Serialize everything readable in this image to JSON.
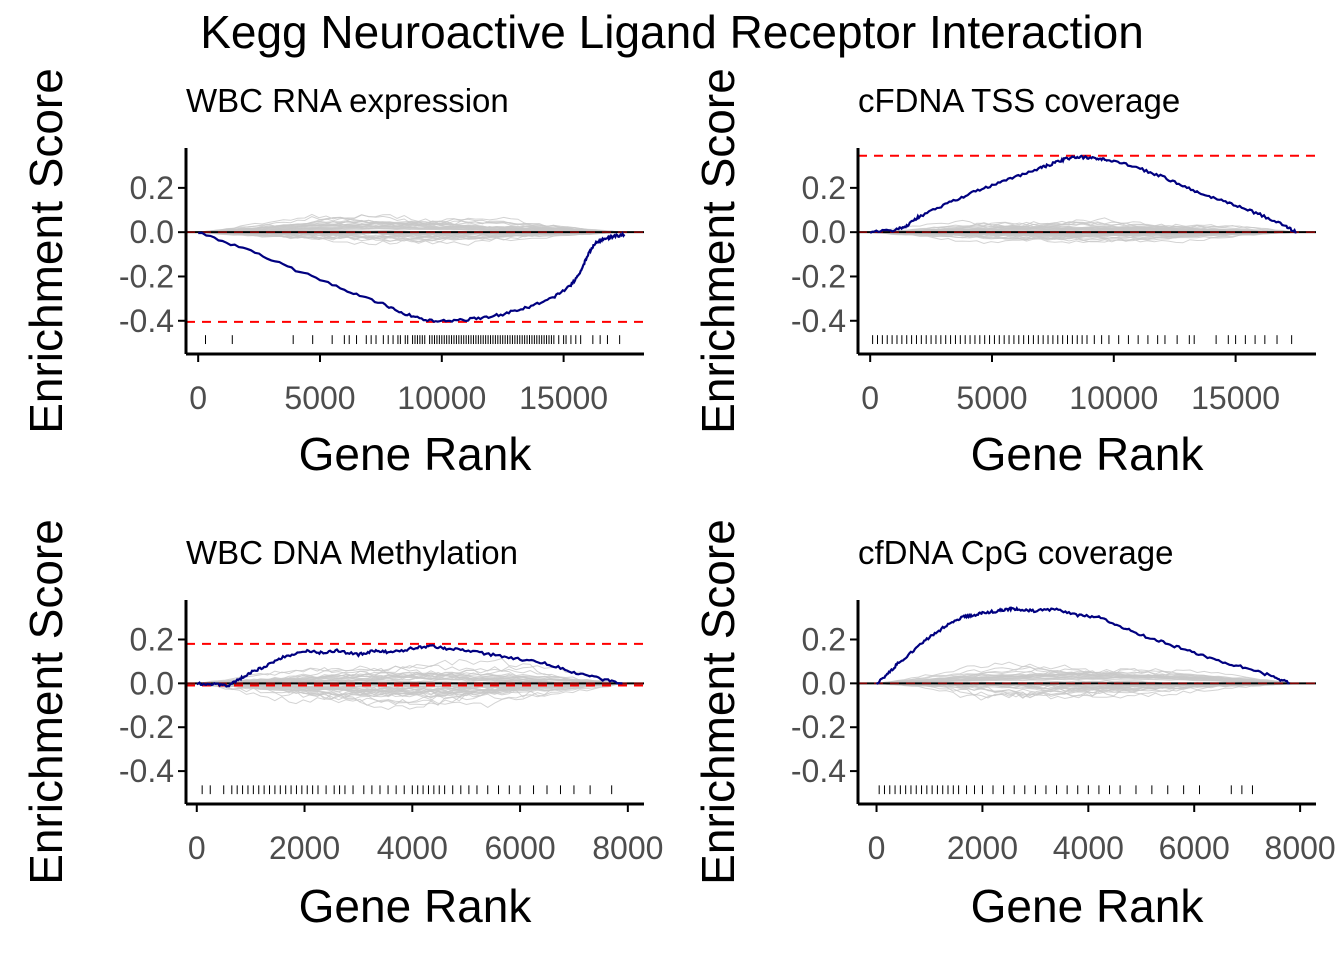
{
  "title": "Kegg Neuroactive Ligand Receptor Interaction",
  "colors": {
    "es_line": "#000080",
    "perm_lines": "#c8c8c8",
    "threshold": "#ff0000",
    "axis": "#000000",
    "tick_text": "#4d4d4d"
  },
  "chart_data": [
    {
      "type": "line",
      "title": "WBC RNA expression",
      "xlabel": "Gene Rank",
      "ylabel": "Enrichment Score",
      "xlim": [
        -500,
        18300
      ],
      "ylim": [
        -0.55,
        0.38
      ],
      "x_ticks": [
        0,
        5000,
        10000,
        15000
      ],
      "x_tick_labels": [
        "0",
        "5000",
        "10000",
        "15000"
      ],
      "y_ticks": [
        0.2,
        0.0,
        -0.2,
        -0.4
      ],
      "y_tick_labels": [
        "0.2",
        "0.0",
        "-0.2",
        "-0.4"
      ],
      "grid": false,
      "perm_range": [
        0,
        17500
      ],
      "perm_amplitude": 0.06,
      "perm_bias": 0.01,
      "hlines": [
        0.0,
        -0.405
      ],
      "es_curve": {
        "x": [
          0,
          2000,
          4000,
          6000,
          7500,
          8500,
          9500,
          10500,
          11500,
          12500,
          13500,
          14500,
          15300,
          15700,
          16000,
          16300,
          16700,
          17000,
          17500
        ],
        "y": [
          0,
          -0.08,
          -0.17,
          -0.26,
          -0.32,
          -0.37,
          -0.4,
          -0.4,
          -0.39,
          -0.37,
          -0.34,
          -0.3,
          -0.24,
          -0.18,
          -0.1,
          -0.05,
          -0.03,
          -0.02,
          -0.01
        ]
      },
      "gene_positions": [
        300,
        1400,
        3900,
        4700,
        5500,
        6000,
        6200,
        6500,
        6900,
        7100,
        7300,
        7600,
        7800,
        8000,
        8200,
        8300,
        8500,
        8600,
        8800,
        8900,
        9000,
        9100,
        9200,
        9300,
        9500,
        9600,
        9700,
        9800,
        9900,
        10000,
        10100,
        10200,
        10300,
        10400,
        10500,
        10600,
        10700,
        10800,
        10900,
        11000,
        11100,
        11200,
        11300,
        11400,
        11500,
        11600,
        11700,
        11800,
        11900,
        12000,
        12100,
        12200,
        12300,
        12400,
        12500,
        12600,
        12700,
        12800,
        12900,
        13000,
        13100,
        13200,
        13300,
        13400,
        13500,
        13600,
        13700,
        13800,
        13900,
        14000,
        14100,
        14200,
        14300,
        14400,
        14500,
        14600,
        14800,
        15000,
        15100,
        15300,
        15500,
        15700,
        16200,
        16500,
        16800,
        17300
      ]
    },
    {
      "type": "line",
      "title": "cFDNA TSS coverage",
      "xlabel": "Gene Rank",
      "ylabel": "Enrichment Score",
      "xlim": [
        -500,
        18300
      ],
      "ylim": [
        -0.55,
        0.38
      ],
      "x_ticks": [
        0,
        5000,
        10000,
        15000
      ],
      "x_tick_labels": [
        "0",
        "5000",
        "10000",
        "15000"
      ],
      "y_ticks": [
        0.2,
        0.0,
        -0.2,
        -0.4
      ],
      "y_tick_labels": [
        "0.2",
        "0.0",
        "-0.2",
        "-0.4"
      ],
      "grid": false,
      "perm_range": [
        0,
        17500
      ],
      "perm_amplitude": 0.05,
      "perm_bias": 0.0,
      "hlines": [
        0.0,
        0.345
      ],
      "es_curve": {
        "x": [
          0,
          1000,
          1500,
          2000,
          3000,
          4000,
          5000,
          6000,
          7000,
          7500,
          8000,
          8500,
          9000,
          9500,
          10000,
          11000,
          12000,
          13000,
          14000,
          15000,
          16000,
          17000,
          17500
        ],
        "y": [
          0,
          0.01,
          0.03,
          0.07,
          0.12,
          0.17,
          0.21,
          0.25,
          0.29,
          0.31,
          0.33,
          0.34,
          0.335,
          0.33,
          0.32,
          0.29,
          0.25,
          0.2,
          0.16,
          0.12,
          0.08,
          0.03,
          0.0
        ]
      },
      "gene_positions": [
        100,
        300,
        500,
        700,
        900,
        1100,
        1300,
        1500,
        1700,
        1900,
        2100,
        2300,
        2500,
        2700,
        2900,
        3100,
        3300,
        3500,
        3700,
        3900,
        4100,
        4300,
        4500,
        4700,
        4900,
        5100,
        5300,
        5500,
        5700,
        5900,
        6100,
        6300,
        6500,
        6700,
        6900,
        7100,
        7300,
        7500,
        7700,
        7900,
        8100,
        8300,
        8500,
        8700,
        8900,
        9200,
        9500,
        9800,
        10200,
        10600,
        11000,
        11400,
        11800,
        12100,
        12600,
        13100,
        13300,
        14200,
        14700,
        15000,
        15400,
        15800,
        16200,
        16700,
        17300
      ]
    },
    {
      "type": "line",
      "title": "WBC DNA Methylation",
      "xlabel": "Gene Rank",
      "ylabel": "Enrichment Score",
      "xlim": [
        -200,
        8300
      ],
      "ylim": [
        -0.55,
        0.38
      ],
      "x_ticks": [
        0,
        2000,
        4000,
        6000,
        8000
      ],
      "x_tick_labels": [
        "0",
        "2000",
        "4000",
        "6000",
        "8000"
      ],
      "y_ticks": [
        0.2,
        0.0,
        -0.2,
        -0.4
      ],
      "y_tick_labels": [
        "0.2",
        "0.0",
        "-0.2",
        "-0.4"
      ],
      "grid": false,
      "perm_range": [
        0,
        7900
      ],
      "perm_amplitude": 0.11,
      "perm_bias": 0.0,
      "hlines": [
        0.0,
        0.18,
        -0.01
      ],
      "es_curve": {
        "x": [
          0,
          300,
          600,
          800,
          1000,
          1300,
          1600,
          2000,
          2300,
          2600,
          3000,
          3300,
          3600,
          4000,
          4300,
          4600,
          5000,
          5500,
          6000,
          6500,
          7000,
          7500,
          7900
        ],
        "y": [
          0,
          -0.005,
          -0.01,
          0.02,
          0.05,
          0.08,
          0.12,
          0.15,
          0.14,
          0.15,
          0.13,
          0.15,
          0.14,
          0.16,
          0.17,
          0.16,
          0.15,
          0.13,
          0.11,
          0.09,
          0.05,
          0.02,
          0.0
        ]
      },
      "gene_positions": [
        100,
        250,
        500,
        650,
        750,
        850,
        950,
        1050,
        1150,
        1250,
        1350,
        1450,
        1550,
        1650,
        1750,
        1850,
        1950,
        2050,
        2150,
        2250,
        2400,
        2550,
        2650,
        2750,
        2900,
        3100,
        3250,
        3400,
        3550,
        3700,
        3850,
        4000,
        4100,
        4200,
        4300,
        4400,
        4500,
        4600,
        4750,
        4900,
        5050,
        5200,
        5400,
        5600,
        5800,
        6000,
        6250,
        6500,
        6750,
        7000,
        7300,
        7700
      ]
    },
    {
      "type": "line",
      "title": "cfDNA CpG coverage",
      "xlabel": "Gene Rank",
      "ylabel": "Enrichment Score",
      "xlim": [
        -350,
        8300
      ],
      "ylim": [
        -0.55,
        0.38
      ],
      "x_ticks": [
        0,
        2000,
        4000,
        6000,
        8000
      ],
      "x_tick_labels": [
        "0",
        "2000",
        "4000",
        "6000",
        "8000"
      ],
      "y_ticks": [
        0.2,
        0.0,
        -0.2,
        -0.4
      ],
      "y_tick_labels": [
        "0.2",
        "0.0",
        "-0.2",
        "-0.4"
      ],
      "grid": false,
      "perm_range": [
        0,
        7900
      ],
      "perm_amplitude": 0.08,
      "perm_bias": 0.02,
      "hlines": [
        0.0
      ],
      "es_curve": {
        "x": [
          0,
          200,
          400,
          700,
          1000,
          1300,
          1600,
          1800,
          2000,
          2300,
          2500,
          2700,
          3000,
          3400,
          3800,
          4200,
          4600,
          5000,
          5500,
          6000,
          6500,
          7000,
          7500,
          7800
        ],
        "y": [
          0,
          0.04,
          0.09,
          0.15,
          0.21,
          0.26,
          0.3,
          0.31,
          0.32,
          0.33,
          0.34,
          0.335,
          0.33,
          0.34,
          0.31,
          0.3,
          0.26,
          0.22,
          0.18,
          0.14,
          0.1,
          0.07,
          0.03,
          0.0
        ]
      },
      "gene_positions": [
        50,
        150,
        250,
        350,
        450,
        550,
        650,
        750,
        850,
        950,
        1050,
        1150,
        1250,
        1350,
        1450,
        1550,
        1700,
        1850,
        2000,
        2200,
        2400,
        2600,
        2800,
        3000,
        3200,
        3400,
        3600,
        3800,
        4000,
        4200,
        4400,
        4600,
        4900,
        5200,
        5500,
        5800,
        6100,
        6700,
        6900,
        7100
      ]
    }
  ]
}
